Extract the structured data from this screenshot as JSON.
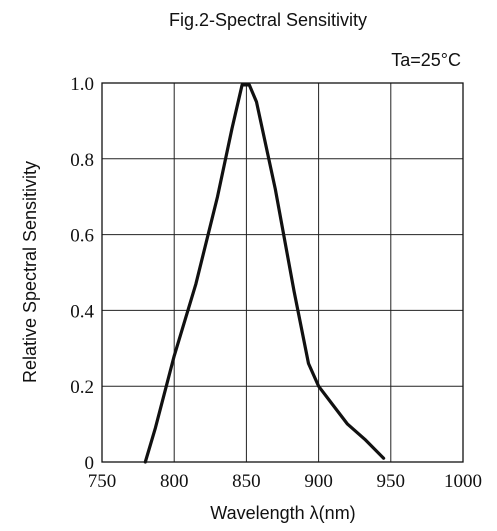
{
  "chart_data": {
    "type": "line",
    "title": "Fig.2-Spectral Sensitivity",
    "annotation": "Ta=25°C",
    "xlabel": "Wavelength  λ(nm)",
    "ylabel": "Relative Spectral Sensitivity",
    "xlim": [
      750,
      1000
    ],
    "ylim": [
      0,
      1.0
    ],
    "x_ticks": [
      750,
      800,
      850,
      900,
      950,
      1000
    ],
    "y_ticks": [
      0,
      0.2,
      0.4,
      0.6,
      0.8,
      1.0
    ],
    "x_tick_labels": [
      "750",
      "800",
      "850",
      "900",
      "950",
      "1000"
    ],
    "y_tick_labels": [
      "0",
      "0.2",
      "0.4",
      "0.6",
      "0.8",
      "1.0"
    ],
    "grid": true,
    "line_color": "#111111",
    "series": [
      {
        "points": [
          [
            780,
            0.0
          ],
          [
            787,
            0.09
          ],
          [
            800,
            0.28
          ],
          [
            815,
            0.47
          ],
          [
            830,
            0.7
          ],
          [
            840,
            0.88
          ],
          [
            847,
            0.995
          ],
          [
            852,
            0.995
          ],
          [
            857,
            0.95
          ],
          [
            870,
            0.72
          ],
          [
            883,
            0.45
          ],
          [
            893,
            0.26
          ],
          [
            900,
            0.2
          ],
          [
            910,
            0.15
          ],
          [
            920,
            0.1
          ],
          [
            932,
            0.06
          ],
          [
            945,
            0.01
          ]
        ]
      }
    ]
  }
}
